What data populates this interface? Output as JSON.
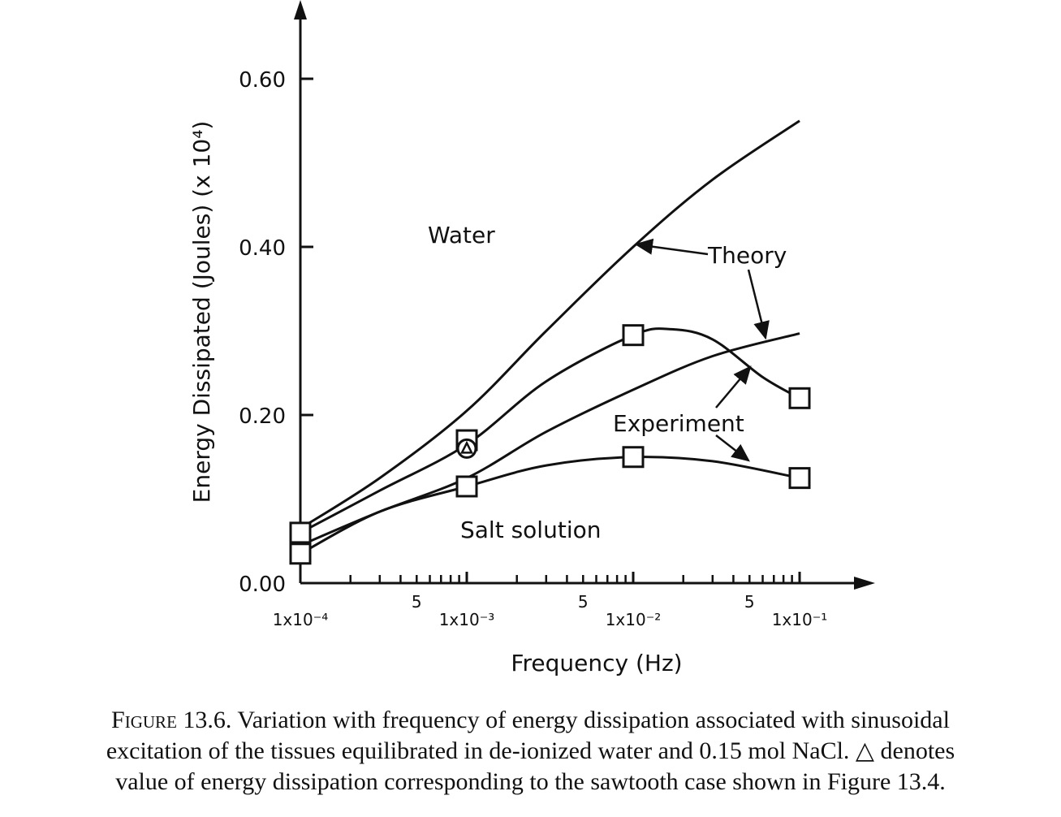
{
  "chart_data": {
    "type": "line",
    "xscale": "log",
    "xlim": [
      0.0001,
      0.1
    ],
    "ylim": [
      0.0,
      0.6
    ],
    "xlabel": "Frequency (Hz)",
    "ylabel": "Energy Dissipated (Joules) (x 10⁴)",
    "y_ticks": [
      {
        "value": 0.0,
        "label": "0.00"
      },
      {
        "value": 0.2,
        "label": "0.20"
      },
      {
        "value": 0.4,
        "label": "0.40"
      },
      {
        "value": 0.6,
        "label": "0.60"
      }
    ],
    "x_major_ticks": [
      {
        "value": 0.0001,
        "label": "1x10⁻⁴"
      },
      {
        "value": 0.001,
        "label": "1x10⁻³"
      },
      {
        "value": 0.01,
        "label": "1x10⁻²"
      },
      {
        "value": 0.1,
        "label": "1x10⁻¹"
      }
    ],
    "x_five_ticks": [
      {
        "value": 0.0005,
        "label": "5"
      },
      {
        "value": 0.005,
        "label": "5"
      },
      {
        "value": 0.05,
        "label": "5"
      }
    ],
    "series": [
      {
        "kind": "theory",
        "x": [
          0.0001,
          0.0003,
          0.001,
          0.003,
          0.01,
          0.03,
          0.1
        ],
        "y": [
          0.065,
          0.125,
          0.205,
          0.3,
          0.4,
          0.48,
          0.55
        ]
      },
      {
        "kind": "experiment",
        "x": [
          0.0001,
          0.001,
          0.01,
          0.1
        ],
        "y": [
          0.06,
          0.17,
          0.295,
          0.22
        ],
        "curve_x": [
          0.0001,
          0.0003,
          0.001,
          0.003,
          0.01,
          0.017,
          0.03,
          0.06,
          0.1
        ],
        "curve_y": [
          0.06,
          0.11,
          0.165,
          0.24,
          0.295,
          0.302,
          0.29,
          0.245,
          0.22
        ]
      },
      {
        "kind": "theory",
        "x": [
          0.0001,
          0.0003,
          0.001,
          0.003,
          0.01,
          0.03,
          0.1
        ],
        "y": [
          0.045,
          0.085,
          0.125,
          0.18,
          0.23,
          0.27,
          0.297
        ]
      },
      {
        "kind": "experiment",
        "x": [
          0.0001,
          0.001,
          0.01,
          0.1
        ],
        "y": [
          0.035,
          0.115,
          0.15,
          0.125
        ],
        "curve_x": [
          0.0001,
          0.0003,
          0.001,
          0.003,
          0.01,
          0.03,
          0.1
        ],
        "curve_y": [
          0.035,
          0.085,
          0.115,
          0.14,
          0.15,
          0.145,
          0.125
        ]
      }
    ],
    "sawtooth_point": {
      "x": 0.001,
      "y": 0.16
    },
    "annotations": {
      "water": "Water",
      "salt": "Salt solution",
      "theory": "Theory",
      "experiment": "Experiment"
    }
  },
  "caption": {
    "lead": "Figure 13.6.",
    "line1_rest": " Variation with frequency of energy dissipation associated with sinusoidal",
    "line2": "excitation of the tissues equilibrated in de-ionized water and 0.15 mol NaCl. △ denotes",
    "line3": "value of energy dissipation corresponding to the sawtooth case shown in Figure 13.4."
  }
}
